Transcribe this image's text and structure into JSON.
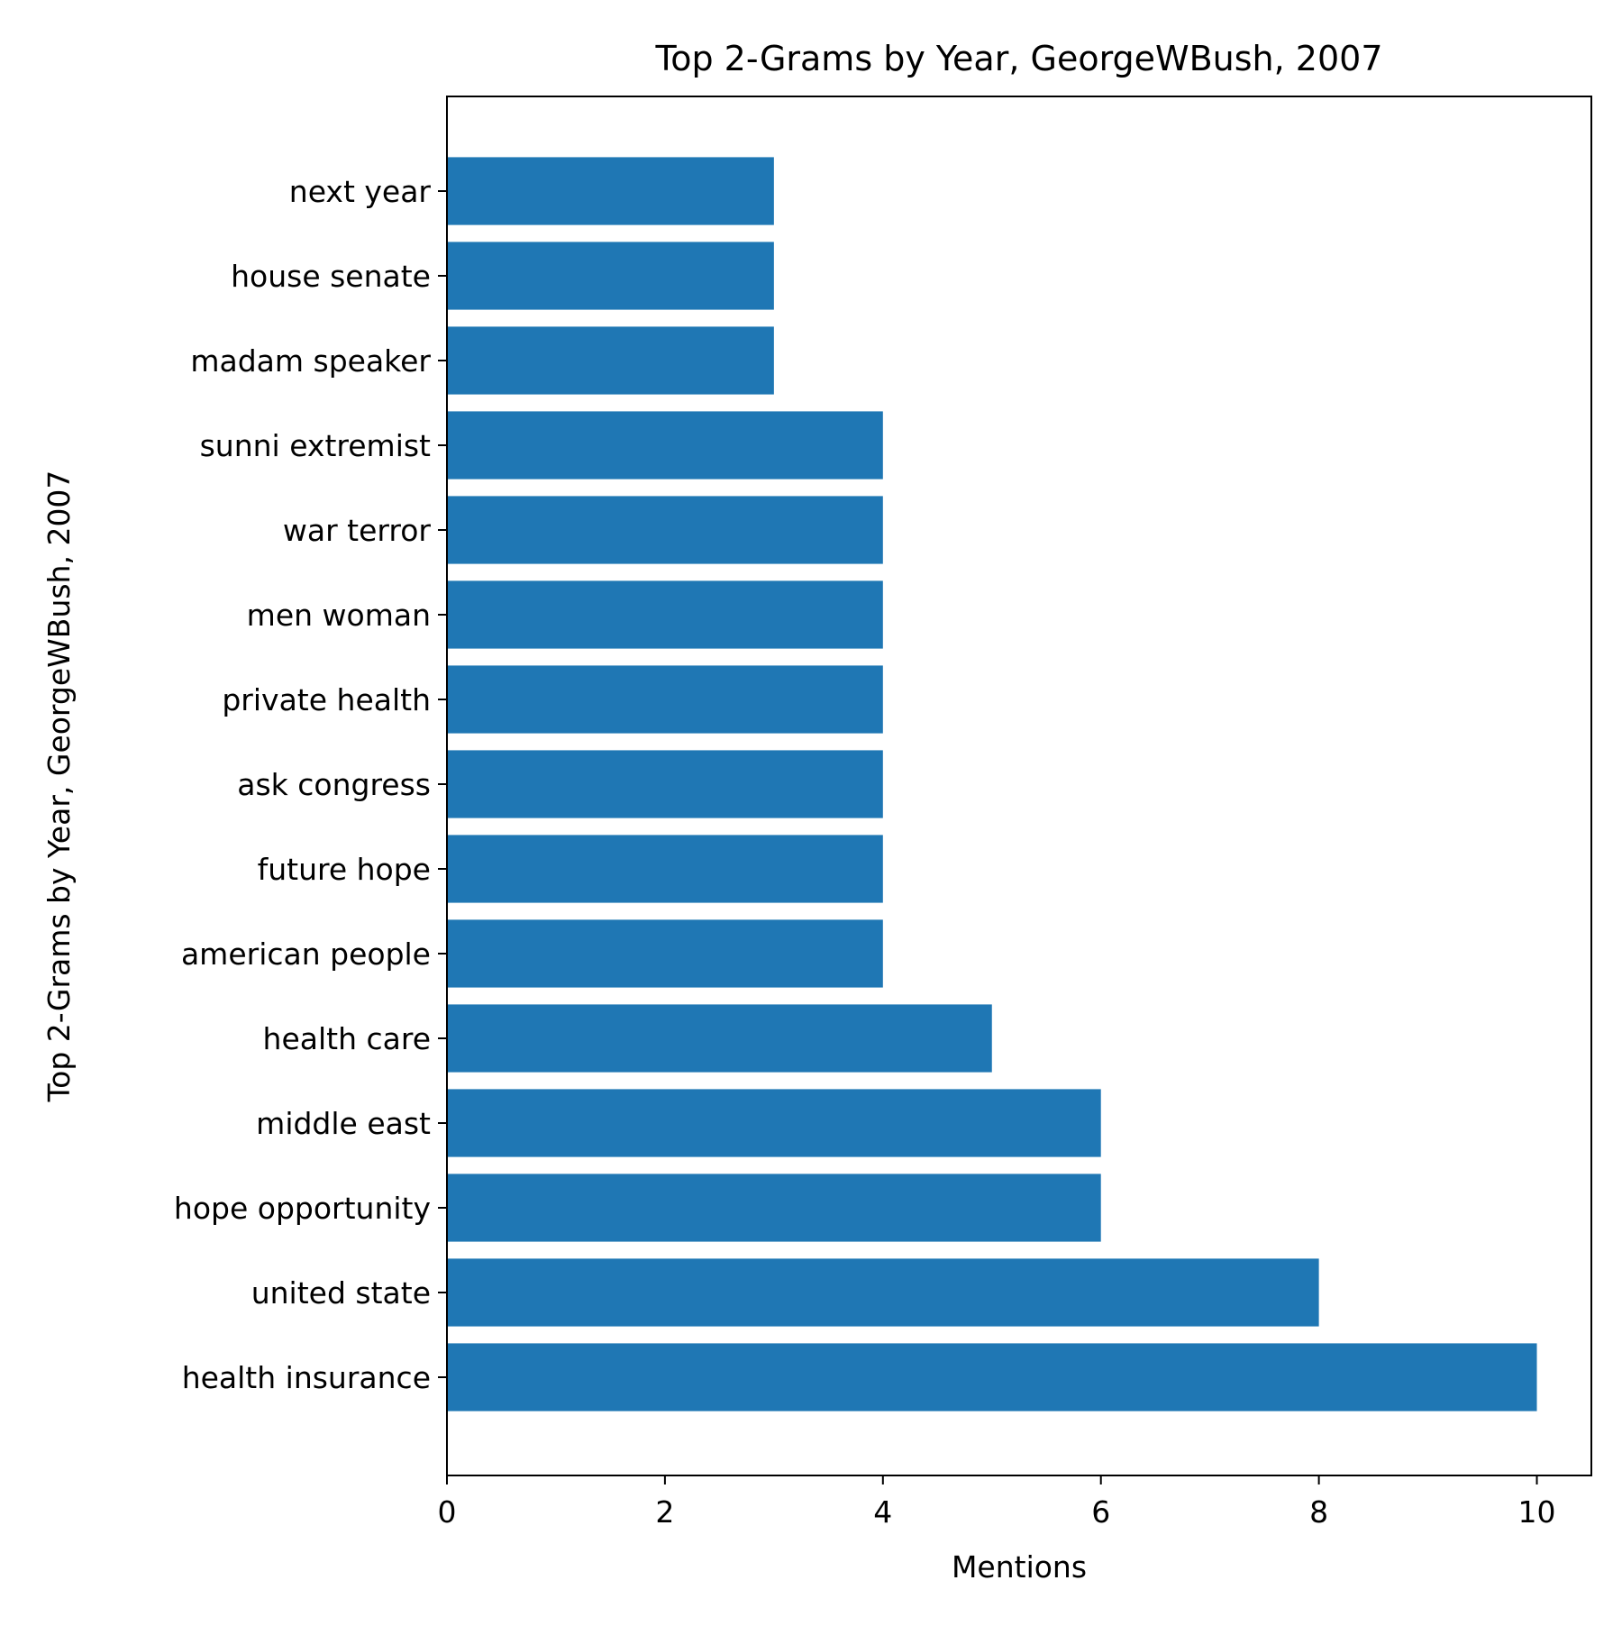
{
  "chart_data": {
    "type": "bar",
    "orientation": "horizontal",
    "title": "Top 2-Grams by Year, GeorgeWBush, 2007",
    "xlabel": "Mentions",
    "ylabel": "Top 2-Grams by Year, GeorgeWBush, 2007",
    "categories": [
      "health insurance",
      "united state",
      "hope opportunity",
      "middle east",
      "health care",
      "american people",
      "future hope",
      "ask congress",
      "private health",
      "men woman",
      "war terror",
      "sunni extremist",
      "madam speaker",
      "house senate",
      "next year"
    ],
    "values": [
      10,
      8,
      6,
      6,
      5,
      4,
      4,
      4,
      4,
      4,
      4,
      4,
      3,
      3,
      3
    ],
    "xlim": [
      0,
      10.5
    ],
    "xticks": [
      0,
      2,
      4,
      6,
      8,
      10
    ],
    "grid": false,
    "bar_color": "#1f77b4"
  }
}
